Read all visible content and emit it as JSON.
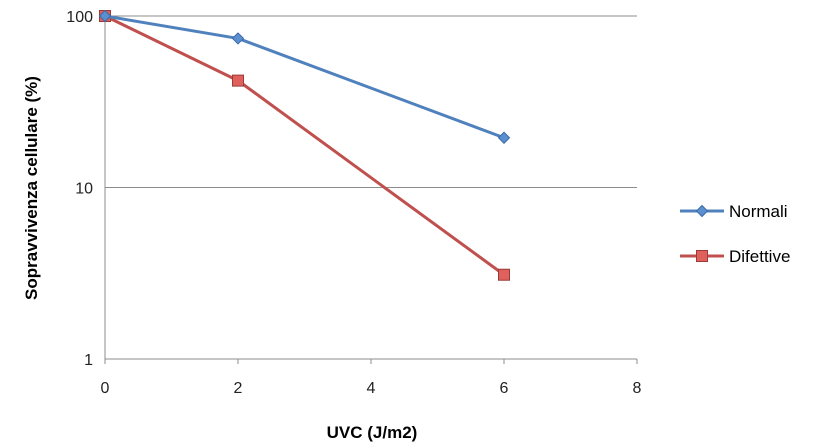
{
  "chart_data": {
    "type": "line",
    "xlabel": "UVC (J/m2)",
    "ylabel": "Sopravvivenza cellulare (%)",
    "xlim": [
      0,
      8
    ],
    "ylim": [
      1,
      100
    ],
    "yscale": "log",
    "x_ticks": [
      "0",
      "2",
      "4",
      "6",
      "8"
    ],
    "y_ticks": [
      "1",
      "10",
      "100"
    ],
    "grid": "horizontal",
    "legend_position": "right",
    "series": [
      {
        "name": "Normali",
        "color": "#4f81bd",
        "marker": "diamond",
        "x": [
          0,
          2,
          6
        ],
        "y": [
          100,
          74,
          19.5
        ]
      },
      {
        "name": "Difettive",
        "color": "#c0504d",
        "marker": "square",
        "x": [
          0,
          2,
          6
        ],
        "y": [
          100,
          42,
          3.1
        ]
      }
    ]
  }
}
